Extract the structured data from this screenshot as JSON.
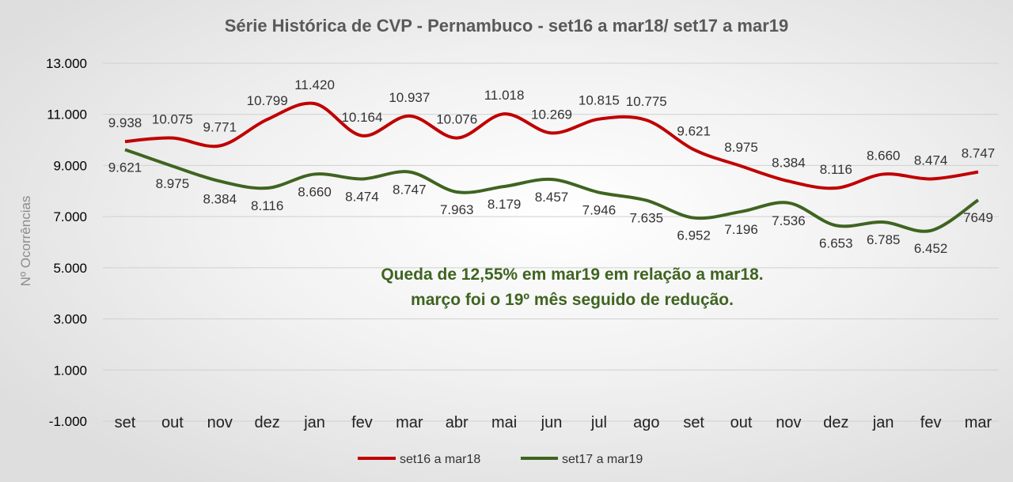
{
  "chart_data": {
    "type": "line",
    "title": "Série Histórica de CVP - Pernambuco - set16 a mar18/ set17 a mar19",
    "xlabel": "",
    "ylabel": "Nº Ocorrências",
    "ylim": [
      -1000,
      13000
    ],
    "yticks": [
      -1000,
      1000,
      3000,
      5000,
      7000,
      9000,
      11000,
      13000
    ],
    "ytick_labels": [
      "-1.000",
      "1.000",
      "3.000",
      "5.000",
      "7.000",
      "9.000",
      "11.000",
      "13.000"
    ],
    "grid": true,
    "legend": "bottom",
    "categories": [
      "set",
      "out",
      "nov",
      "dez",
      "jan",
      "fev",
      "mar",
      "abr",
      "mai",
      "jun",
      "jul",
      "ago",
      "set",
      "out",
      "nov",
      "dez",
      "jan",
      "fev",
      "mar"
    ],
    "series": [
      {
        "name": "set16 a mar18",
        "color": "#c00000",
        "values": [
          9938,
          10075,
          9771,
          10799,
          11420,
          10164,
          10937,
          10076,
          11018,
          10269,
          10815,
          10775,
          9621,
          8975,
          8384,
          8116,
          8660,
          8474,
          8747
        ],
        "labels": [
          "9.938",
          "10.075",
          "9.771",
          "10.799",
          "11.420",
          "10.164",
          "10.937",
          "10.076",
          "11.018",
          "10.269",
          "10.815",
          "10.775",
          "9.621",
          "8.975",
          "8.384",
          "8.116",
          "8.660",
          "8.474",
          "8.747"
        ]
      },
      {
        "name": "set17 a mar19",
        "color": "#3f6420",
        "values": [
          9621,
          8975,
          8384,
          8116,
          8660,
          8474,
          8747,
          7963,
          8179,
          8457,
          7946,
          7635,
          6952,
          7196,
          7536,
          6653,
          6785,
          6452,
          7649
        ],
        "labels": [
          "9.621",
          "8.975",
          "8.384",
          "8.116",
          "8.660",
          "8.474",
          "8.747",
          "7.963",
          "8.179",
          "8.457",
          "7.946",
          "7.635",
          "6.952",
          "7.196",
          "7.536",
          "6.653",
          "6.785",
          "6.452",
          "7649"
        ]
      }
    ],
    "annotations": [
      "Queda de 12,55% em mar19 em relação a mar18.",
      "março  foi o 19º mês seguido de redução."
    ]
  }
}
